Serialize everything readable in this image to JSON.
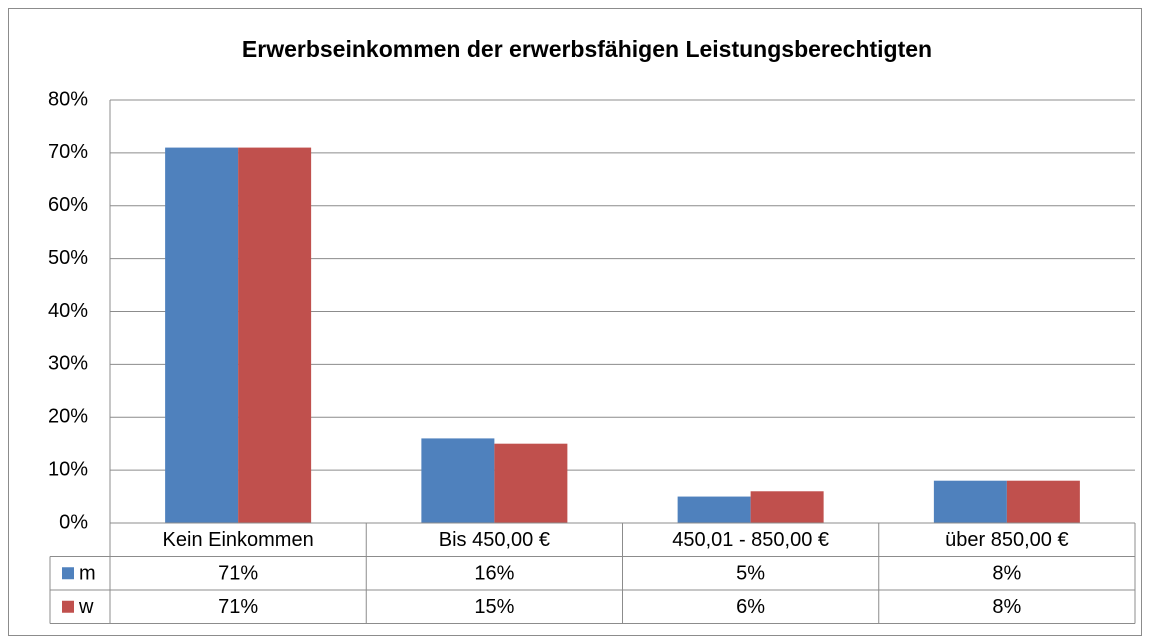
{
  "chart_data": {
    "type": "bar",
    "title": "Erwerbseinkommen der erwerbsfähigen Leistungsberechtigten",
    "categories": [
      "Kein Einkommen",
      "Bis 450,00 €",
      "450,01 - 850,00 €",
      "über 850,00 €"
    ],
    "series": [
      {
        "name": "m",
        "color": "#4f81bd",
        "values": [
          71,
          16,
          5,
          8
        ],
        "value_labels": [
          "71%",
          "16%",
          "5%",
          "8%"
        ]
      },
      {
        "name": "w",
        "color": "#c0504d",
        "values": [
          71,
          15,
          6,
          8
        ],
        "value_labels": [
          "71%",
          "15%",
          "6%",
          "8%"
        ]
      }
    ],
    "ylim": [
      0,
      80
    ],
    "yticks": [
      {
        "value": 0,
        "label": "0%"
      },
      {
        "value": 10,
        "label": "10%"
      },
      {
        "value": 20,
        "label": "20%"
      },
      {
        "value": 30,
        "label": "30%"
      },
      {
        "value": 40,
        "label": "40%"
      },
      {
        "value": 50,
        "label": "50%"
      },
      {
        "value": 60,
        "label": "60%"
      },
      {
        "value": 70,
        "label": "70%"
      },
      {
        "value": 80,
        "label": "80%"
      }
    ],
    "grid": true
  }
}
